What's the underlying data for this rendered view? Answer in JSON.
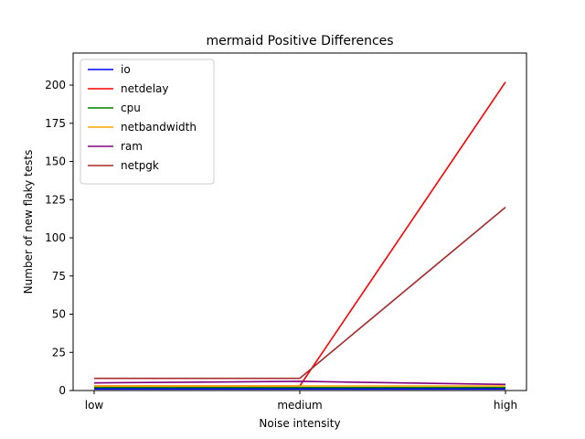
{
  "chart_data": {
    "type": "line",
    "title": "mermaid Positive Differences",
    "xlabel": "Noise intensity",
    "ylabel": "Number of new flaky tests",
    "categories": [
      "low",
      "medium",
      "high"
    ],
    "ylim": [
      0,
      221
    ],
    "yticks": [
      0,
      25,
      50,
      75,
      100,
      125,
      150,
      175,
      200
    ],
    "grid": false,
    "legend_position": "top-left",
    "series": [
      {
        "name": "io",
        "color": "#0000ff",
        "values": [
          1,
          1,
          1
        ]
      },
      {
        "name": "netdelay",
        "color": "#ff0000",
        "values": [
          3,
          3,
          202
        ]
      },
      {
        "name": "cpu",
        "color": "#008000",
        "values": [
          2,
          2,
          2
        ]
      },
      {
        "name": "netbandwidth",
        "color": "#ffa500",
        "values": [
          3,
          3,
          3
        ]
      },
      {
        "name": "ram",
        "color": "#800080",
        "values": [
          5,
          6,
          4
        ]
      },
      {
        "name": "netpgk",
        "color": "#a52a2a",
        "values": [
          8,
          8,
          120
        ]
      }
    ]
  }
}
